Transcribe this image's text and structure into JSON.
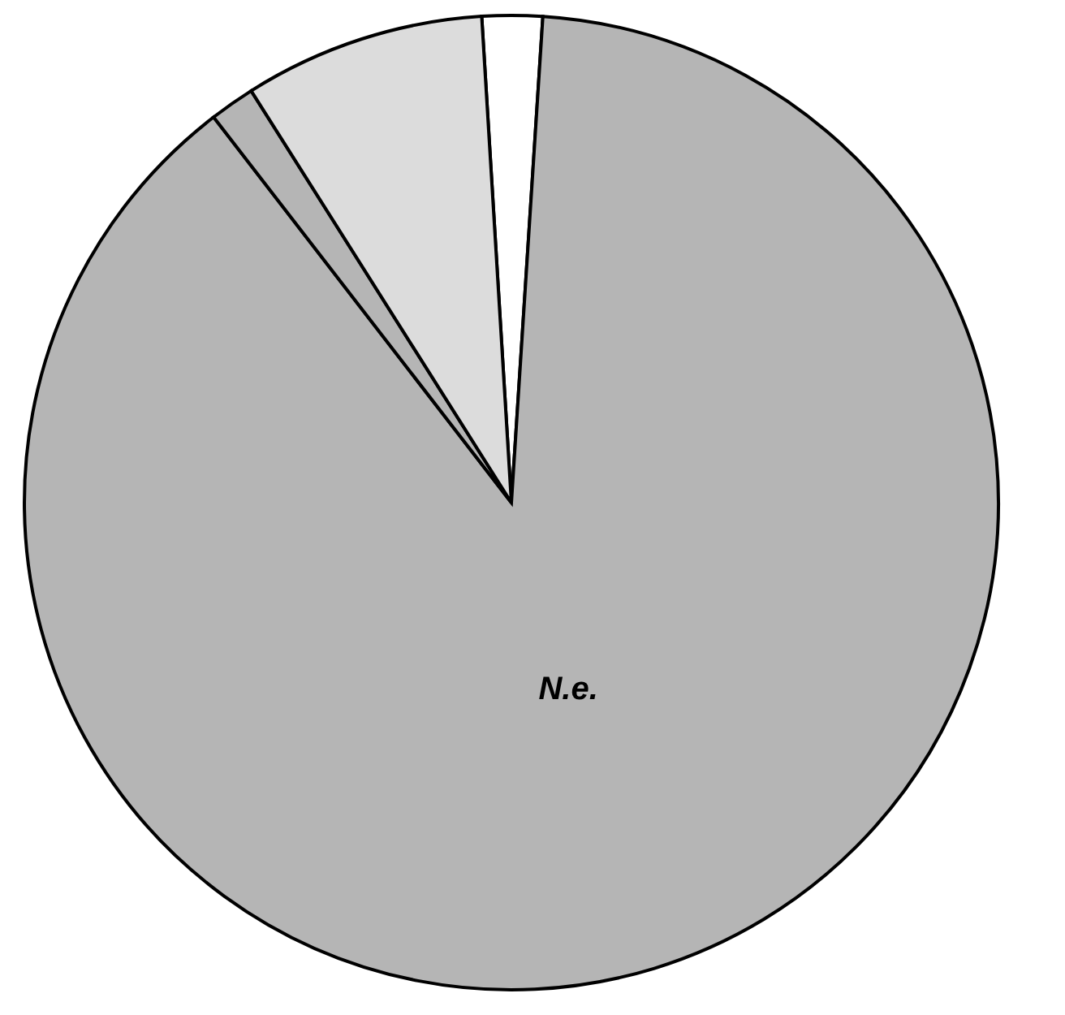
{
  "chart_data": {
    "type": "pie",
    "categories": [
      null,
      "N.e.",
      null,
      null
    ],
    "values": [
      2,
      88.5,
      1.5,
      8
    ],
    "colors": [
      "#ffffff",
      "#b5b5b5",
      "#b5b5b5",
      "#dcdcdc"
    ],
    "legend": false
  }
}
